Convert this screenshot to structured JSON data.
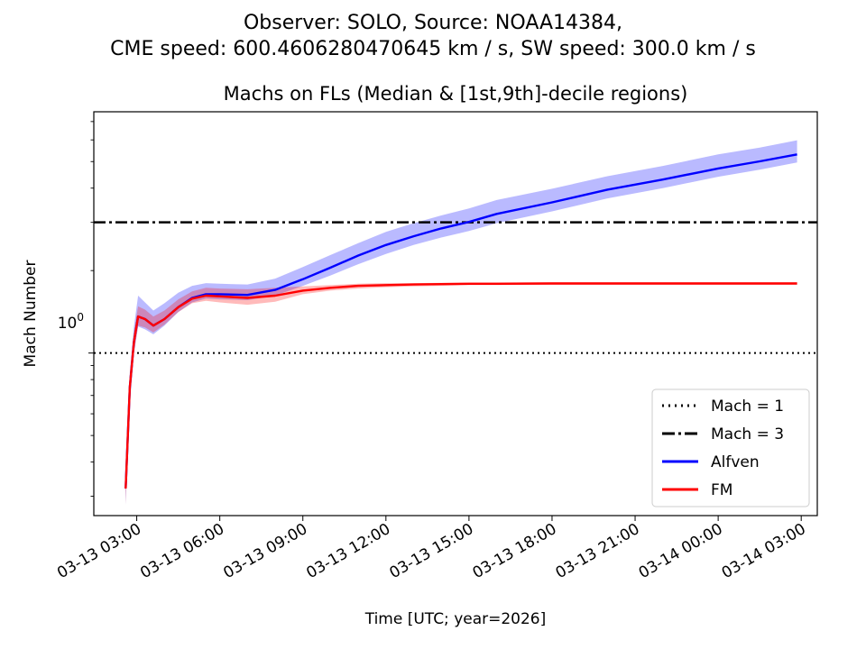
{
  "chart_data": {
    "type": "line",
    "suptitle": [
      "Observer: SOLO, Source: NOAA14384,",
      "CME speed: 600.4606280470645 km / s, SW speed: 300.0 km / s"
    ],
    "title": "Machs on FLs (Median & [1st,9th]-decile regions)",
    "xlabel": "Time [UTC; year=2026]",
    "ylabel": "Mach Number",
    "yscale": "log",
    "ylim": [
      0.255,
      7.6
    ],
    "xlim_hours": [
      1.45,
      27.58
    ],
    "xtick_labels": [
      "03-13 03:00",
      "03-13 06:00",
      "03-13 09:00",
      "03-13 12:00",
      "03-13 15:00",
      "03-13 18:00",
      "03-13 21:00",
      "03-14 00:00",
      "03-14 03:00"
    ],
    "xtick_hours": [
      3,
      6,
      9,
      12,
      15,
      18,
      21,
      24,
      27
    ],
    "ytick_label": "10^0",
    "ytick_label_main": "10",
    "ytick_label_exp": "0",
    "x_hours": [
      2.6,
      2.75,
      2.9,
      3.05,
      3.3,
      3.6,
      4.0,
      4.5,
      5.0,
      5.5,
      6.0,
      7.0,
      8.0,
      9.0,
      10.0,
      11.0,
      12.0,
      13.0,
      14.0,
      15.0,
      16.0,
      18.0,
      20.0,
      22.0,
      24.0,
      25.5,
      26.85
    ],
    "series": [
      {
        "name": "Alfven",
        "color": "#0000ff",
        "band_color": "#0000ff",
        "values": [
          0.32,
          0.75,
          1.1,
          1.36,
          1.33,
          1.26,
          1.33,
          1.47,
          1.59,
          1.64,
          1.64,
          1.63,
          1.7,
          1.86,
          2.05,
          2.27,
          2.48,
          2.67,
          2.85,
          3.01,
          3.22,
          3.55,
          3.95,
          4.3,
          4.72,
          5.01,
          5.31
        ],
        "lower": [
          0.28,
          0.65,
          1.0,
          1.25,
          1.22,
          1.17,
          1.26,
          1.41,
          1.53,
          1.58,
          1.57,
          1.56,
          1.62,
          1.76,
          1.92,
          2.11,
          2.3,
          2.48,
          2.64,
          2.79,
          2.98,
          3.29,
          3.67,
          4.0,
          4.4,
          4.67,
          4.96
        ],
        "upper": [
          0.36,
          0.85,
          1.25,
          1.62,
          1.53,
          1.43,
          1.52,
          1.66,
          1.76,
          1.8,
          1.79,
          1.78,
          1.87,
          2.06,
          2.28,
          2.52,
          2.77,
          2.98,
          3.18,
          3.37,
          3.62,
          3.98,
          4.42,
          4.82,
          5.31,
          5.62,
          5.98
        ]
      },
      {
        "name": "FM",
        "color": "#ff0000",
        "band_color": "#ff0000",
        "values": [
          0.32,
          0.75,
          1.1,
          1.36,
          1.33,
          1.26,
          1.33,
          1.47,
          1.58,
          1.62,
          1.61,
          1.59,
          1.62,
          1.69,
          1.73,
          1.76,
          1.77,
          1.78,
          1.785,
          1.79,
          1.79,
          1.795,
          1.795,
          1.795,
          1.795,
          1.795,
          1.795
        ],
        "lower": [
          0.28,
          0.66,
          1.0,
          1.26,
          1.24,
          1.19,
          1.27,
          1.41,
          1.52,
          1.55,
          1.53,
          1.5,
          1.54,
          1.64,
          1.69,
          1.72,
          1.74,
          1.75,
          1.76,
          1.77,
          1.77,
          1.775,
          1.775,
          1.775,
          1.775,
          1.775,
          1.775
        ],
        "upper": [
          0.36,
          0.84,
          1.2,
          1.48,
          1.44,
          1.36,
          1.43,
          1.57,
          1.68,
          1.73,
          1.72,
          1.71,
          1.73,
          1.75,
          1.77,
          1.79,
          1.8,
          1.8,
          1.805,
          1.81,
          1.81,
          1.815,
          1.815,
          1.815,
          1.815,
          1.815,
          1.815
        ]
      }
    ],
    "reference_lines": [
      {
        "name": "Mach = 1",
        "y": 1,
        "style": "dotted",
        "color": "#000000"
      },
      {
        "name": "Mach = 3",
        "y": 3,
        "style": "dashdot",
        "color": "#000000"
      }
    ],
    "legend": {
      "placement": "lower-right",
      "entries": [
        {
          "label": "Mach = 1",
          "style": "dotted",
          "color": "#000000"
        },
        {
          "label": "Mach = 3",
          "style": "dashdot",
          "color": "#000000"
        },
        {
          "label": "Alfven",
          "style": "solid",
          "color": "#0000ff"
        },
        {
          "label": "FM",
          "style": "solid",
          "color": "#ff0000"
        }
      ]
    },
    "grid": false
  }
}
